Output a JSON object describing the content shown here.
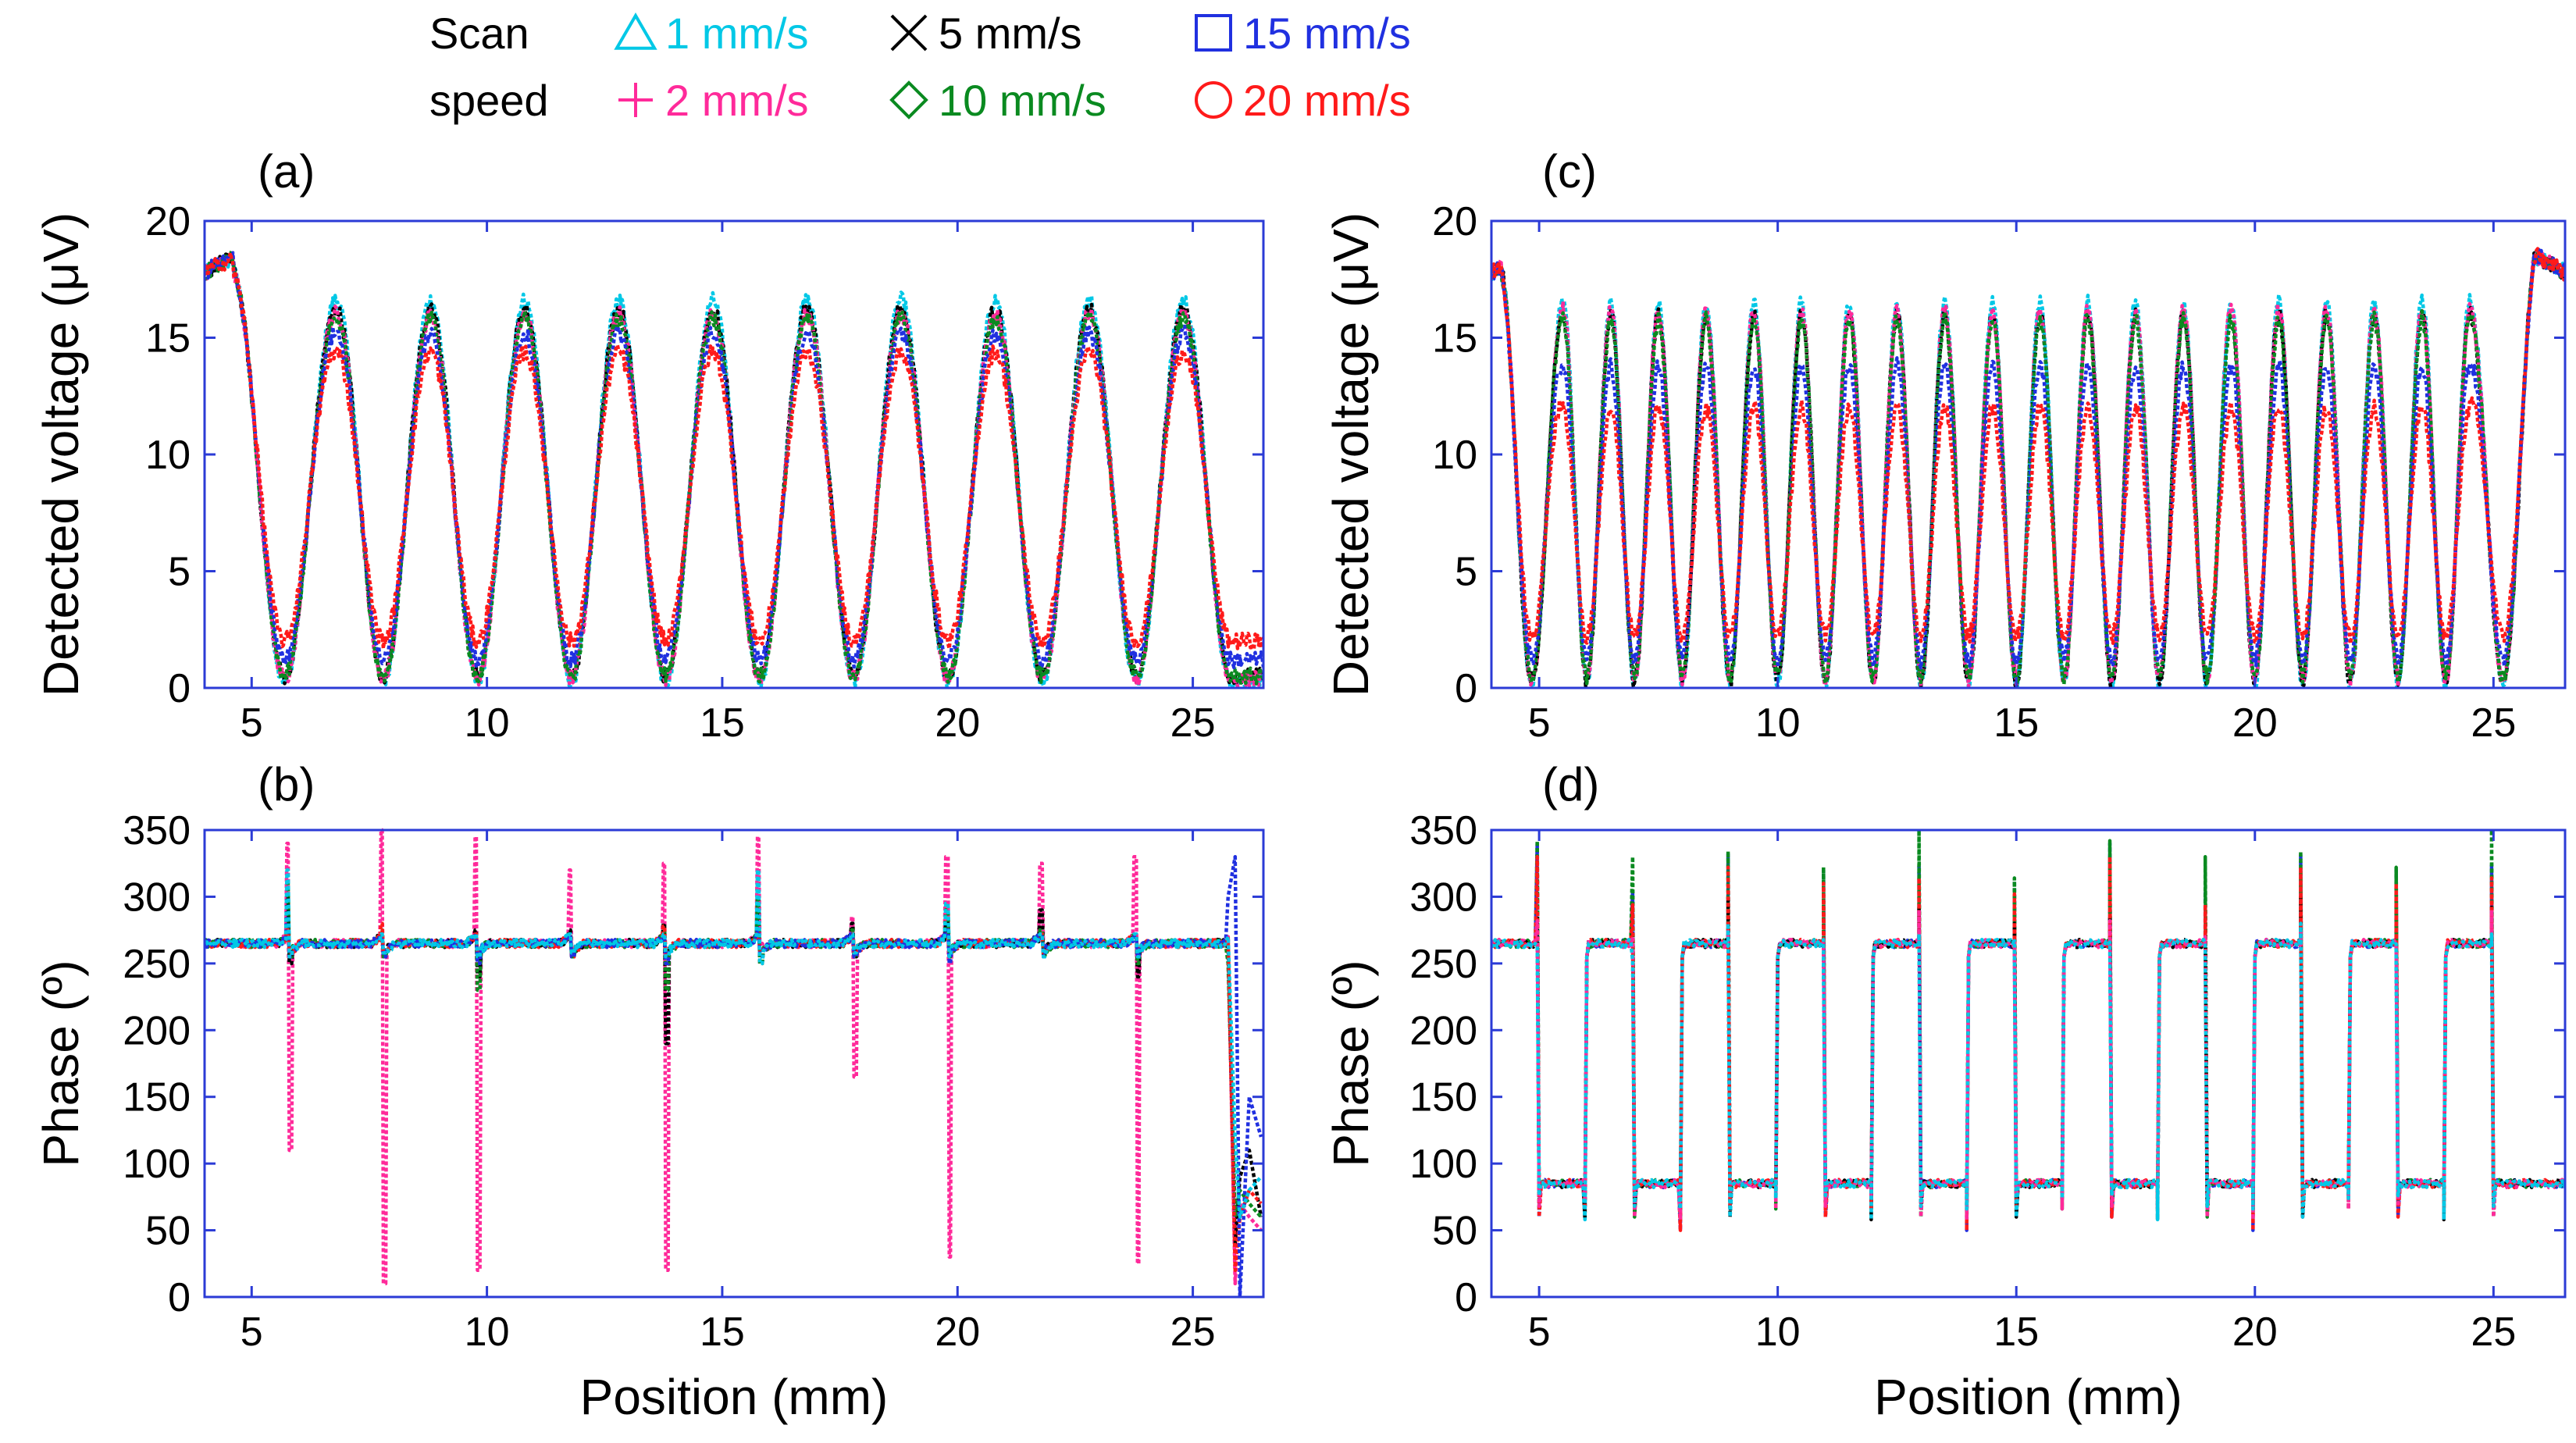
{
  "legend": {
    "title_line1": "Scan",
    "title_line2": "speed",
    "entries": [
      {
        "marker": "triangle-icon",
        "label": "1 mm/s",
        "color": "#00c8e6"
      },
      {
        "marker": "cross-icon",
        "label": "5 mm/s",
        "color": "#000000"
      },
      {
        "marker": "square-icon",
        "label": "15 mm/s",
        "color": "#2030e0"
      },
      {
        "marker": "plus-icon",
        "label": "2 mm/s",
        "color": "#ff2a9a"
      },
      {
        "marker": "diamond-icon",
        "label": "10 mm/s",
        "color": "#0a8a20"
      },
      {
        "marker": "circle-icon",
        "label": "20 mm/s",
        "color": "#ff1a1a"
      }
    ]
  },
  "chart_data": [
    {
      "panel": "(a)",
      "type": "line",
      "xlabel": "",
      "ylabel": "Detected voltage (μV)",
      "xlim": [
        4,
        26.5
      ],
      "ylim": [
        0,
        20
      ],
      "xticks": [
        5,
        10,
        15,
        20,
        25
      ],
      "yticks": [
        0,
        5,
        10,
        15,
        20
      ],
      "peaks_x": [
        4.6,
        6.8,
        8.8,
        10.8,
        12.8,
        14.8,
        16.8,
        18.8,
        20.8,
        22.8,
        24.8
      ],
      "series": [
        {
          "color": "#00c8e6",
          "peak": 16.6,
          "trough": 0.3
        },
        {
          "color": "#000000",
          "peak": 16.2,
          "trough": 0.5
        },
        {
          "color": "#ff2a9a",
          "peak": 16.0,
          "trough": 0.4
        },
        {
          "color": "#0a8a20",
          "peak": 15.8,
          "trough": 0.5
        },
        {
          "color": "#2030e0",
          "peak": 15.2,
          "trough": 1.2
        },
        {
          "color": "#ff1a1a",
          "peak": 14.4,
          "trough": 2.0
        }
      ]
    },
    {
      "panel": "(b)",
      "type": "line",
      "xlabel": "Position (mm)",
      "ylabel": "Phase (º)",
      "xlim": [
        4,
        26.5
      ],
      "ylim": [
        0,
        350
      ],
      "xticks": [
        5,
        10,
        15,
        20,
        25
      ],
      "yticks": [
        0,
        50,
        100,
        150,
        200,
        250,
        300,
        350
      ],
      "baseline": 265,
      "spike_x": [
        5.8,
        7.8,
        9.8,
        11.8,
        13.8,
        15.8,
        17.8,
        19.8,
        21.8,
        23.8
      ],
      "series": [
        {
          "color": "#ff2a9a",
          "spike_high": [
            340,
            350,
            345,
            320,
            325,
            345,
            285,
            330,
            325,
            330
          ],
          "spike_low": [
            110,
            10,
            20,
            260,
            20,
            265,
            165,
            30,
            260,
            25
          ]
        },
        {
          "color": "#000000",
          "spike_high": [
            300,
            270,
            275,
            275,
            280,
            290,
            280,
            280,
            290,
            270
          ],
          "spike_low": [
            250,
            255,
            240,
            255,
            190,
            250,
            255,
            255,
            255,
            240
          ]
        },
        {
          "color": "#0a8a20",
          "spike_high": [
            310,
            275,
            270,
            270,
            275,
            300,
            275,
            290,
            275,
            270
          ],
          "spike_low": [
            255,
            255,
            230,
            255,
            230,
            250,
            255,
            255,
            255,
            250
          ]
        },
        {
          "color": "#ff1a1a",
          "spike_high": [
            275,
            280,
            272,
            270,
            278,
            275,
            272,
            272,
            272,
            272
          ],
          "spike_low": [
            258,
            258,
            258,
            255,
            258,
            258,
            258,
            258,
            258,
            258
          ]
        },
        {
          "color": "#2030e0",
          "spike_high": [
            285,
            270,
            270,
            270,
            270,
            275,
            270,
            275,
            270,
            270
          ],
          "spike_low": [
            255,
            255,
            250,
            255,
            250,
            255,
            255,
            250,
            255,
            255
          ]
        },
        {
          "color": "#00c8e6",
          "spike_high": [
            320,
            272,
            272,
            272,
            272,
            320,
            272,
            295,
            272,
            272
          ],
          "spike_low": [
            255,
            258,
            255,
            258,
            255,
            250,
            258,
            255,
            255,
            255
          ]
        }
      ]
    },
    {
      "panel": "(c)",
      "type": "line",
      "xlabel": "",
      "ylabel": "Detected voltage (μV)",
      "xlim": [
        4,
        26.5
      ],
      "ylim": [
        0,
        20
      ],
      "xticks": [
        5,
        10,
        15,
        20,
        25
      ],
      "yticks": [
        0,
        5,
        10,
        15,
        20
      ],
      "peaks_x": [
        4.2,
        5.5,
        6.5,
        7.5,
        8.5,
        9.5,
        10.5,
        11.5,
        12.5,
        13.5,
        14.5,
        15.5,
        16.5,
        17.5,
        18.5,
        19.5,
        20.5,
        21.5,
        22.5,
        23.5,
        24.5,
        25.9
      ],
      "series": [
        {
          "color": "#00c8e6",
          "peak": 16.5,
          "trough": 0.2
        },
        {
          "color": "#000000",
          "peak": 16.0,
          "trough": 0.3
        },
        {
          "color": "#ff2a9a",
          "peak": 16.2,
          "trough": 0.4
        },
        {
          "color": "#0a8a20",
          "peak": 15.8,
          "trough": 0.5
        },
        {
          "color": "#2030e0",
          "peak": 13.8,
          "trough": 1.2
        },
        {
          "color": "#ff1a1a",
          "peak": 12.0,
          "trough": 2.2
        }
      ]
    },
    {
      "panel": "(d)",
      "type": "line",
      "xlabel": "Position (mm)",
      "ylabel": "Phase (º)",
      "xlim": [
        4,
        26.5
      ],
      "ylim": [
        0,
        350
      ],
      "xticks": [
        5,
        10,
        15,
        20,
        25
      ],
      "yticks": [
        0,
        50,
        100,
        150,
        200,
        250,
        300,
        350
      ],
      "high_level": 265,
      "low_level": 85,
      "transitions_x": [
        5,
        6,
        7,
        8,
        9,
        10,
        11,
        12,
        13,
        14,
        15,
        16,
        17,
        18,
        19,
        20,
        21,
        22,
        23,
        24,
        25
      ],
      "series": [
        {
          "color": "#2030e0",
          "overshoot": 340
        },
        {
          "color": "#0a8a20",
          "overshoot": 350
        },
        {
          "color": "#000000",
          "overshoot": 300
        },
        {
          "color": "#ff1a1a",
          "overshoot": 330
        },
        {
          "color": "#ff2a9a",
          "overshoot": 290
        },
        {
          "color": "#00c8e6",
          "overshoot": 280
        }
      ]
    }
  ]
}
